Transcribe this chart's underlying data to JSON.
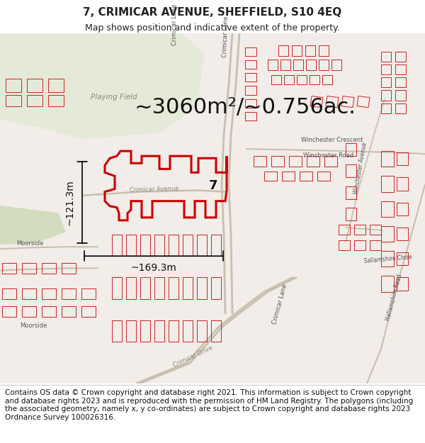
{
  "title": "7, CRIMICAR AVENUE, SHEFFIELD, S10 4EQ",
  "subtitle": "Map shows position and indicative extent of the property.",
  "area_text": "~3060m²/~0.756ac.",
  "dim_horizontal": "~169.3m",
  "dim_vertical": "~121.3m",
  "property_label": "7",
  "footer": "Contains OS data © Crown copyright and database right 2021. This information is subject to Crown copyright and database rights 2023 and is reproduced with the permission of HM Land Registry. The polygons (including the associated geometry, namely x, y co-ordinates) are subject to Crown copyright and database rights 2023 Ordnance Survey 100026316.",
  "bg_color": "#f5f0eb",
  "map_bg": "#f2ede8",
  "playing_field_color": "#e5ead8",
  "building_outline_color": "#cc2222",
  "highlight_color": "#cc0000",
  "text_color": "#222222",
  "title_fontsize": 11,
  "subtitle_fontsize": 9,
  "area_fontsize": 22,
  "dim_fontsize": 10,
  "footer_fontsize": 7.5,
  "road_color": "#c8bfb0"
}
